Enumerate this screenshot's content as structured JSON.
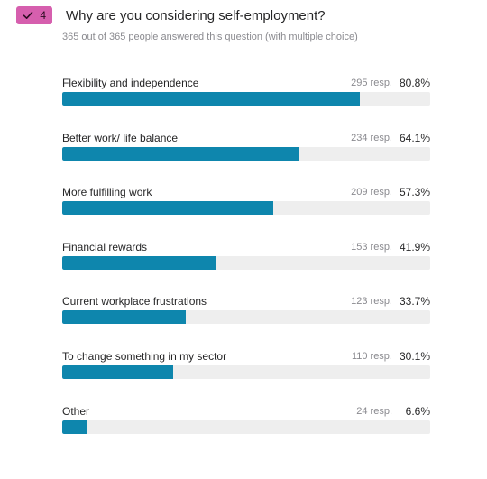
{
  "question": {
    "number": "4",
    "title": "Why are you considering self-employment?",
    "subtitle": "365 out of 365 people answered this question (with multiple choice)",
    "badge_color": "#d65fae",
    "icon": "check-icon"
  },
  "chart_data": {
    "type": "bar",
    "orientation": "horizontal",
    "bar_color": "#0e86ad",
    "track_color": "#eeeeee",
    "xlim": [
      0,
      100
    ],
    "categories": [
      "Flexibility and independence",
      "Better work/ life balance",
      "More fulfilling work",
      "Financial rewards",
      "Current workplace frustrations",
      "To change something in my sector",
      "Other"
    ],
    "responses": [
      "295 resp.",
      "234 resp.",
      "209 resp.",
      "153 resp.",
      "123 resp.",
      "110 resp.",
      "24 resp."
    ],
    "percent_labels": [
      "80.8%",
      "64.1%",
      "57.3%",
      "41.9%",
      "33.7%",
      "30.1%",
      "6.6%"
    ],
    "values": [
      80.8,
      64.1,
      57.3,
      41.9,
      33.7,
      30.1,
      6.6
    ]
  }
}
